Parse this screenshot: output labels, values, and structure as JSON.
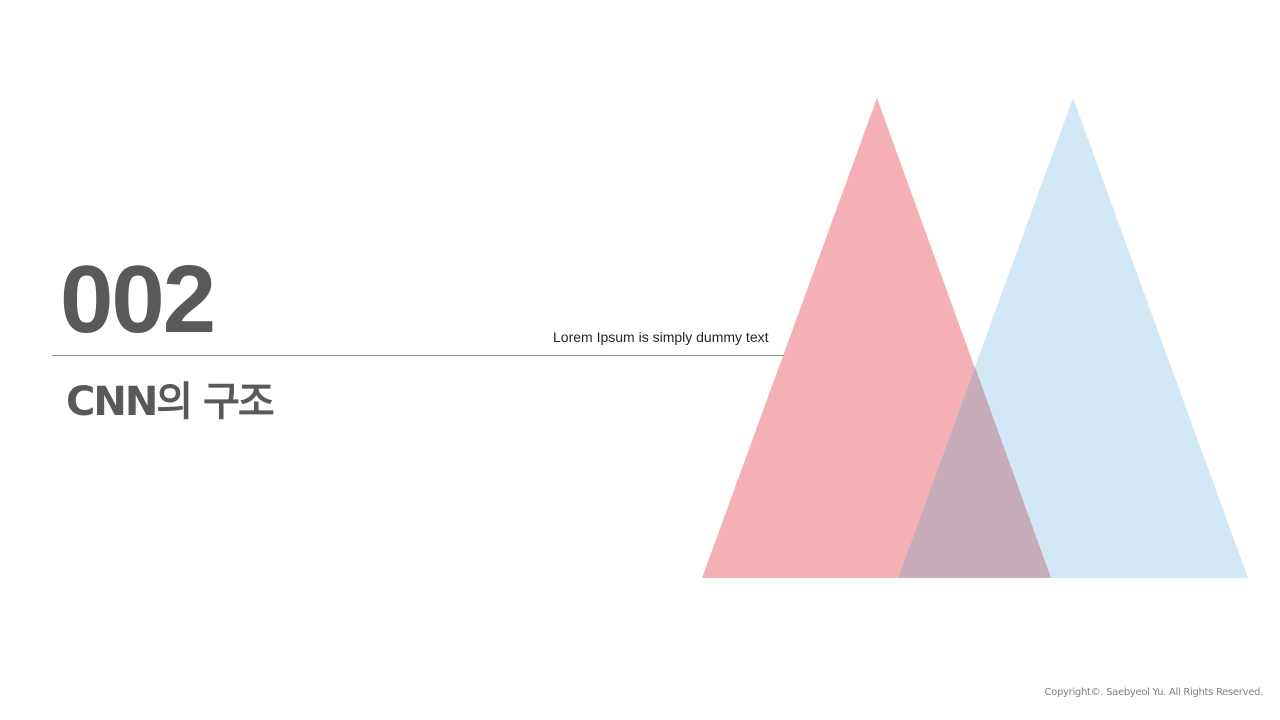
{
  "slide": {
    "number": "002",
    "title": "CNN의 구조",
    "subtitle": "Lorem Ipsum is simply dummy text",
    "copyright": "Copyright©. Saebyeol Yu. All Rights Reserved."
  },
  "decoration": {
    "triangles": [
      {
        "name": "pink-triangle",
        "color": "#f4b0b5"
      },
      {
        "name": "blue-triangle",
        "color": "#d2e8f6"
      }
    ],
    "overlap_color": "#c9acba"
  }
}
